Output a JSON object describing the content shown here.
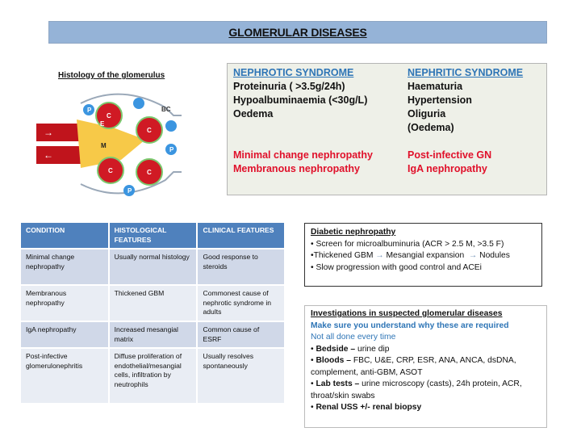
{
  "title": "GLOMERULAR DISEASES",
  "histology": {
    "caption": "Histology of the glomerulus",
    "labels": {
      "capillary": "C",
      "endothelium": "E",
      "podocyte": "P",
      "mesangium": "M",
      "bowmans_capsule": "BC"
    }
  },
  "syndromes": {
    "nephrotic": {
      "heading": "NEPHROTIC SYNDROME",
      "features": [
        "Proteinuria ( >3.5g/24h)",
        "Hypoalbuminaemia (<30g/L)",
        "Oedema"
      ],
      "causes": [
        "Minimal change nephropathy",
        "Membranous nephropathy"
      ]
    },
    "nephritic": {
      "heading": "NEPHRITIC SYNDROME",
      "features": [
        "Haematuria",
        "Hypertension",
        "Oliguria",
        "(Oedema)"
      ],
      "causes": [
        "Post-infective GN",
        "IgA nephropathy"
      ]
    }
  },
  "table": {
    "headers": [
      "CONDITION",
      "HISTOLOGICAL FEATURES",
      "CLINICAL FEATURES"
    ],
    "rows": [
      [
        "Minimal change nephropathy",
        "Usually normal histology",
        "Good response to steroids"
      ],
      [
        "Membranous nephropathy",
        "Thickened GBM",
        "Commonest cause of nephrotic syndrome in adults"
      ],
      [
        "IgA nephropathy",
        "Increased mesangial matrix",
        "Common cause of ESRF"
      ],
      [
        "Post-infective glomerulonephritis",
        "Diffuse proliferation of endothelial/mesangial cells, infiltration by neutrophils",
        "Usually resolves spontaneously"
      ]
    ]
  },
  "diabetic": {
    "heading": "Diabetic nephropathy",
    "line1": "• Screen for microalbuminuria (ACR > 2.5 M, >3.5 F)",
    "line2_a": "•Thickened GBM",
    "line2_b": "Mesangial expansion",
    "line2_c": "Nodules",
    "arrow": "→",
    "line3": "• Slow progression with good control and ACEi"
  },
  "investigations": {
    "heading": "Investigations in suspected glomerular diseases",
    "note1": "Make sure you understand why these are required",
    "note2": "Not all done every time",
    "items": [
      {
        "label": "Bedside –",
        "text": " urine dip"
      },
      {
        "label": "Bloods –",
        "text": " FBC, U&E, CRP, ESR, ANA, ANCA, dsDNA, complement, anti-GBM, ASOT"
      },
      {
        "label": "Lab tests –",
        "text": " urine microscopy (casts), 24h protein, ACR, throat/skin swabs"
      },
      {
        "label": "Renal USS +/- renal biopsy",
        "text": ""
      }
    ]
  },
  "colors": {
    "title_bar": "#95b3d7",
    "table_header": "#4f81bd",
    "heading_blue": "#2e75b6",
    "cause_red": "#e0102a"
  }
}
